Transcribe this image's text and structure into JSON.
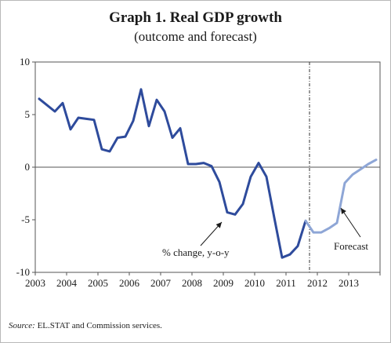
{
  "header": {
    "title": "Graph 1. Real GDP growth",
    "subtitle": "(outcome and forecast)"
  },
  "footer": {
    "source_label": "Source:",
    "source_text": "EL.STAT and Commission services."
  },
  "chart_data": {
    "type": "line",
    "title": "Graph 1. Real GDP growth",
    "subtitle": "(outcome and forecast)",
    "xlabel": "",
    "ylabel": "",
    "ylim": [
      -10,
      10
    ],
    "xlim": [
      2003.0,
      2014.0
    ],
    "yticks": [
      10,
      5,
      0,
      -5,
      -10
    ],
    "xtick_labels": [
      "2003",
      "2004",
      "2005",
      "2006",
      "2007",
      "2008",
      "2009",
      "2010",
      "2011",
      "2012",
      "2013"
    ],
    "grid": false,
    "forecast_start": 2011.75,
    "series": [
      {
        "name": "outcome",
        "color": "#2e4b9c",
        "x": [
          2003.125,
          2003.375,
          2003.625,
          2003.875,
          2004.125,
          2004.375,
          2004.625,
          2004.875,
          2005.125,
          2005.375,
          2005.625,
          2005.875,
          2006.125,
          2006.375,
          2006.625,
          2006.875,
          2007.125,
          2007.375,
          2007.625,
          2007.875,
          2008.125,
          2008.375,
          2008.625,
          2008.875,
          2009.125,
          2009.375,
          2009.625,
          2009.875,
          2010.125,
          2010.375,
          2010.625,
          2010.875,
          2011.125,
          2011.375,
          2011.625
        ],
        "values": [
          6.5,
          5.9,
          5.3,
          6.1,
          3.6,
          4.7,
          4.6,
          4.5,
          1.7,
          1.5,
          2.8,
          2.9,
          4.4,
          7.4,
          3.9,
          6.4,
          5.3,
          2.8,
          3.7,
          0.3,
          0.3,
          0.4,
          0.1,
          -1.4,
          -4.3,
          -4.5,
          -3.5,
          -0.9,
          0.4,
          -0.9,
          -4.8,
          -8.6,
          -8.3,
          -7.5,
          -5.1
        ]
      },
      {
        "name": "forecast",
        "color": "#8ea6d6",
        "x": [
          2011.625,
          2011.875,
          2012.125,
          2012.375,
          2012.625,
          2012.875,
          2013.125,
          2013.375,
          2013.625,
          2013.875
        ],
        "values": [
          -5.1,
          -6.2,
          -6.2,
          -5.8,
          -5.3,
          -1.5,
          -0.7,
          -0.2,
          0.3,
          0.7
        ]
      }
    ],
    "annotations": [
      {
        "text": "% change, y-o-y"
      },
      {
        "text": "Forecast"
      }
    ]
  }
}
